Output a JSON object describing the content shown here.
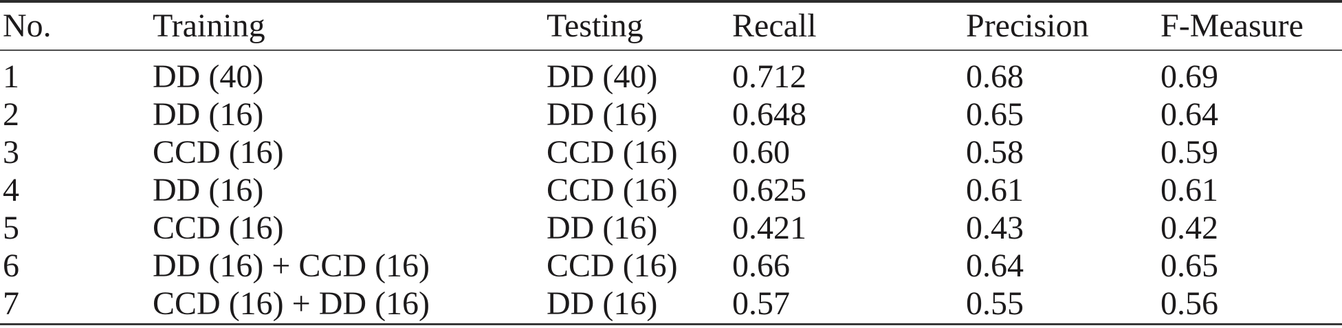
{
  "table": {
    "columns": [
      {
        "key": "no",
        "label": "No."
      },
      {
        "key": "training",
        "label": "Training"
      },
      {
        "key": "testing",
        "label": "Testing"
      },
      {
        "key": "recall",
        "label": "Recall"
      },
      {
        "key": "precision",
        "label": "Precision"
      },
      {
        "key": "f_measure",
        "label": "F-Measure"
      }
    ],
    "rows": [
      {
        "no": "1",
        "training": "DD (40)",
        "testing": "DD (40)",
        "recall": "0.712",
        "precision": "0.68",
        "f_measure": "0.69"
      },
      {
        "no": "2",
        "training": "DD (16)",
        "testing": "DD (16)",
        "recall": "0.648",
        "precision": "0.65",
        "f_measure": "0.64"
      },
      {
        "no": "3",
        "training": "CCD (16)",
        "testing": "CCD (16)",
        "recall": "0.60",
        "precision": "0.58",
        "f_measure": "0.59"
      },
      {
        "no": "4",
        "training": "DD (16)",
        "testing": "CCD (16)",
        "recall": "0.625",
        "precision": "0.61",
        "f_measure": "0.61"
      },
      {
        "no": "5",
        "training": "CCD (16)",
        "testing": "DD (16)",
        "recall": "0.421",
        "precision": "0.43",
        "f_measure": "0.42"
      },
      {
        "no": "6",
        "training": "DD (16) + CCD (16)",
        "testing": "CCD (16)",
        "recall": "0.66",
        "precision": "0.64",
        "f_measure": "0.65"
      },
      {
        "no": "7",
        "training": "CCD (16) + DD (16)",
        "testing": "DD (16)",
        "recall": "0.57",
        "precision": "0.55",
        "f_measure": "0.56"
      }
    ]
  },
  "chart_data": {
    "type": "table",
    "title": "",
    "columns": [
      "No.",
      "Training",
      "Testing",
      "Recall",
      "Precision",
      "F-Measure"
    ],
    "rows": [
      [
        "1",
        "DD (40)",
        "DD (40)",
        0.712,
        0.68,
        0.69
      ],
      [
        "2",
        "DD (16)",
        "DD (16)",
        0.648,
        0.65,
        0.64
      ],
      [
        "3",
        "CCD (16)",
        "CCD (16)",
        0.6,
        0.58,
        0.59
      ],
      [
        "4",
        "DD (16)",
        "CCD (16)",
        0.625,
        0.61,
        0.61
      ],
      [
        "5",
        "CCD (16)",
        "DD (16)",
        0.421,
        0.43,
        0.42
      ],
      [
        "6",
        "DD (16) + CCD (16)",
        "CCD (16)",
        0.66,
        0.64,
        0.65
      ],
      [
        "7",
        "CCD (16) + DD (16)",
        "DD (16)",
        0.57,
        0.55,
        0.56
      ]
    ]
  },
  "colors": {
    "text": "#1c1a1b",
    "rule_heavy": "#2c2c2c",
    "rule_light": "#4c4c4c",
    "background": "#ffffff"
  }
}
